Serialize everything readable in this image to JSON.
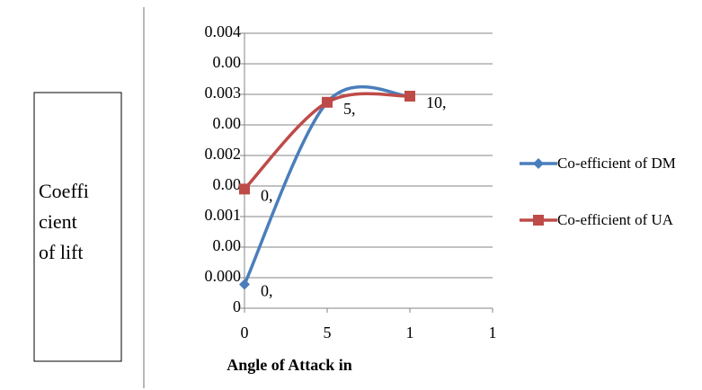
{
  "chart_data": {
    "type": "line",
    "y_label_lines": [
      "Coeffi",
      "cient",
      "of lift"
    ],
    "x_label": "Angle of Attack in",
    "x": [
      0,
      5,
      10
    ],
    "xlim": [
      0,
      15
    ],
    "xticks": [
      0,
      5,
      {
        "value": 10,
        "label": "1"
      },
      {
        "value": 15,
        "label": "1"
      }
    ],
    "ylim": [
      0,
      0.004
    ],
    "yticks": [
      0,
      {
        "value": 0.0005,
        "label": "0.000"
      },
      {
        "value": 0.001,
        "label": "0.00"
      },
      {
        "value": 0.0015,
        "label": "0.001"
      },
      {
        "value": 0.002,
        "label": "0.00"
      },
      {
        "value": 0.0025,
        "label": "0.002"
      },
      {
        "value": 0.003,
        "label": "0.00"
      },
      {
        "value": 0.0035,
        "label": "0.003"
      },
      {
        "value": 0.004,
        "label": "0.00"
      },
      {
        "value": 0.0045,
        "label": "0.004"
      }
    ],
    "grid": true,
    "series": [
      {
        "name": "Co-efficient of DM",
        "color": "#4a7ebb",
        "marker": "diamond",
        "values": [
          0.00039,
          0.00337,
          0.00347
        ]
      },
      {
        "name": "Co-efficient of UA",
        "color": "#be4b48",
        "marker": "square",
        "values": [
          0.00195,
          0.00337,
          0.00347
        ]
      }
    ],
    "annotations": [
      "0,",
      "0,",
      "5,",
      "10,"
    ],
    "legend": "right"
  }
}
